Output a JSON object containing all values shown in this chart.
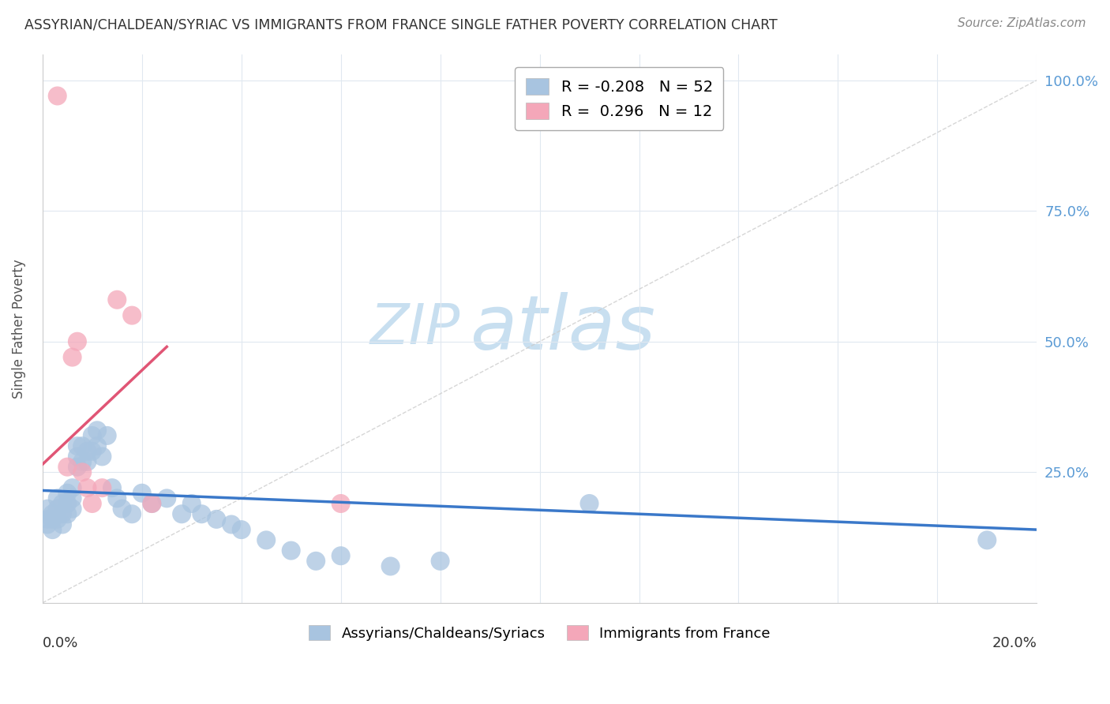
{
  "title": "ASSYRIAN/CHALDEAN/SYRIAC VS IMMIGRANTS FROM FRANCE SINGLE FATHER POVERTY CORRELATION CHART",
  "source": "Source: ZipAtlas.com",
  "ylabel": "Single Father Poverty",
  "blue_R": -0.208,
  "blue_N": 52,
  "pink_R": 0.296,
  "pink_N": 12,
  "blue_color": "#a8c4e0",
  "pink_color": "#f4a7b9",
  "blue_line_color": "#3a78c9",
  "pink_line_color": "#e05575",
  "blue_label": "Assyrians/Chaldeans/Syriacs",
  "pink_label": "Immigrants from France",
  "watermark_zip_color": "#c8dff0",
  "watermark_atlas_color": "#c8dff0",
  "blue_x": [
    0.001,
    0.001,
    0.001,
    0.002,
    0.002,
    0.002,
    0.003,
    0.003,
    0.003,
    0.004,
    0.004,
    0.004,
    0.005,
    0.005,
    0.005,
    0.006,
    0.006,
    0.006,
    0.007,
    0.007,
    0.007,
    0.008,
    0.008,
    0.009,
    0.009,
    0.01,
    0.01,
    0.011,
    0.011,
    0.012,
    0.013,
    0.014,
    0.015,
    0.016,
    0.018,
    0.02,
    0.022,
    0.025,
    0.028,
    0.03,
    0.032,
    0.035,
    0.038,
    0.04,
    0.045,
    0.05,
    0.055,
    0.06,
    0.07,
    0.08,
    0.11,
    0.19
  ],
  "blue_y": [
    0.18,
    0.16,
    0.15,
    0.17,
    0.16,
    0.14,
    0.2,
    0.18,
    0.16,
    0.19,
    0.17,
    0.15,
    0.21,
    0.19,
    0.17,
    0.22,
    0.2,
    0.18,
    0.3,
    0.28,
    0.26,
    0.3,
    0.27,
    0.29,
    0.27,
    0.32,
    0.29,
    0.33,
    0.3,
    0.28,
    0.32,
    0.22,
    0.2,
    0.18,
    0.17,
    0.21,
    0.19,
    0.2,
    0.17,
    0.19,
    0.17,
    0.16,
    0.15,
    0.14,
    0.12,
    0.1,
    0.08,
    0.09,
    0.07,
    0.08,
    0.19,
    0.12
  ],
  "pink_x": [
    0.003,
    0.005,
    0.006,
    0.007,
    0.008,
    0.009,
    0.01,
    0.012,
    0.015,
    0.018,
    0.022,
    0.06
  ],
  "pink_y": [
    0.97,
    0.26,
    0.47,
    0.5,
    0.25,
    0.22,
    0.19,
    0.22,
    0.58,
    0.55,
    0.19,
    0.19
  ],
  "blue_trend_x0": 0.0,
  "blue_trend_x1": 0.2,
  "blue_trend_y0": 0.215,
  "blue_trend_y1": 0.14,
  "pink_trend_x0": 0.0,
  "pink_trend_x1": 0.025,
  "pink_trend_y0": 0.265,
  "pink_trend_y1": 0.49,
  "xmin": 0.0,
  "xmax": 0.2,
  "ymin": 0.0,
  "ymax": 1.05
}
